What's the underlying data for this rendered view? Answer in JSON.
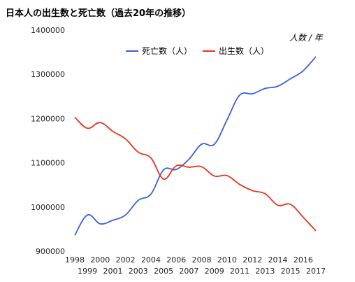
{
  "chart_data": {
    "type": "line",
    "title": "日本人の出生数と死亡数（過去20年の推移）",
    "unit_label": "人数 / 年",
    "x": [
      "1998",
      "1999",
      "2000",
      "2001",
      "2002",
      "2003",
      "2004",
      "2005",
      "2006",
      "2007",
      "2008",
      "2009",
      "2010",
      "2011",
      "2012",
      "2013",
      "2014",
      "2015",
      "2016",
      "2017"
    ],
    "yticks": [
      "900000",
      "1000000",
      "1100000",
      "1200000",
      "1300000",
      "1400000"
    ],
    "ylim": [
      900000,
      1400000
    ],
    "grid": false,
    "legend_position": "top-center",
    "series": [
      {
        "name": "死亡数（人）",
        "color": "#3b5fd9",
        "values": [
          936000,
          982000,
          962000,
          970000,
          982000,
          1015000,
          1029000,
          1084000,
          1085000,
          1108000,
          1142000,
          1142000,
          1197000,
          1253000,
          1256000,
          1268000,
          1273000,
          1290000,
          1308000,
          1340000
        ]
      },
      {
        "name": "出生数（人）",
        "color": "#e8311a",
        "values": [
          1203000,
          1178000,
          1191000,
          1171000,
          1154000,
          1124000,
          1111000,
          1063000,
          1093000,
          1090000,
          1091000,
          1070000,
          1071000,
          1051000,
          1037000,
          1030000,
          1004000,
          1006000,
          977000,
          946000
        ]
      }
    ]
  }
}
